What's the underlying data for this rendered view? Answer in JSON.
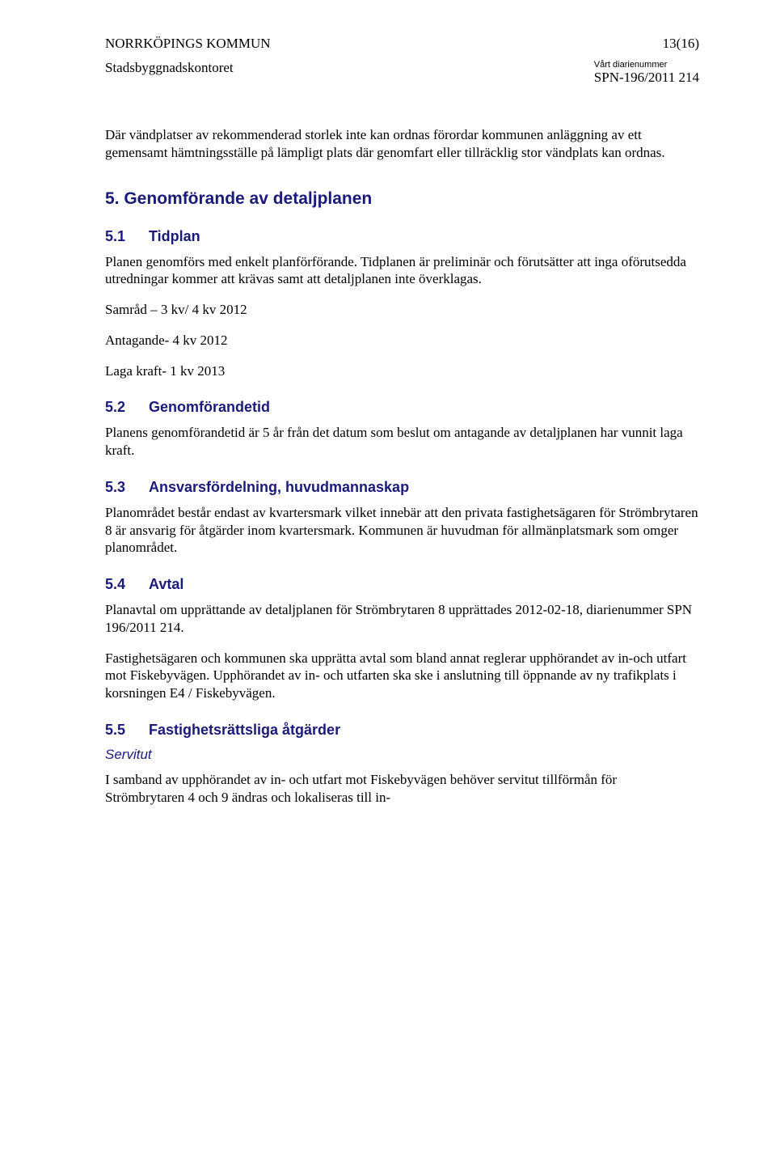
{
  "header": {
    "org": "NORRKÖPINGS KOMMUN",
    "page_num": "13(16)",
    "department": "Stadsbyggnadskontoret",
    "diarie_label": "Vårt diarienummer",
    "diarie_num": "SPN-196/2011 214"
  },
  "intro_para": "Där vändplatser av rekommenderad storlek inte kan ordnas förordar kommunen anläggning av ett gemensamt hämtningsställe på lämpligt plats där genomfart eller tillräcklig stor vändplats kan ordnas.",
  "s5": {
    "title": "5.  Genomförande av detaljplanen",
    "s5_1": {
      "num": "5.1",
      "title": "Tidplan",
      "p1": "Planen genomförs med enkelt planförförande. Tidplanen är preliminär och förutsätter att inga oförutsedda utredningar kommer att krävas samt att detaljplanen inte överklagas.",
      "p2": "Samråd – 3 kv/ 4 kv 2012",
      "p3": "Antagande- 4 kv 2012",
      "p4": "Laga kraft- 1 kv 2013"
    },
    "s5_2": {
      "num": "5.2",
      "title": "Genomförandetid",
      "p1": "Planens genomförandetid är 5 år från det datum som beslut om antagande av detaljplanen har vunnit laga kraft."
    },
    "s5_3": {
      "num": "5.3",
      "title": "Ansvarsfördelning, huvudmannaskap",
      "p1": "Planområdet består endast av kvartersmark vilket innebär att den privata fastighetsägaren för Strömbrytaren 8 är ansvarig för åtgärder inom kvartersmark. Kommunen är huvudman för allmänplatsmark som omger planområdet."
    },
    "s5_4": {
      "num": "5.4",
      "title": "Avtal",
      "p1": "Planavtal om upprättande av detaljplanen för Strömbrytaren 8 upprättades 2012-02-18, diarienummer SPN 196/2011 214.",
      "p2": "Fastighetsägaren och kommunen ska upprätta avtal som bland annat reglerar upphörandet av in-och utfart mot Fiskebyvägen. Upphörandet av in- och utfarten ska ske i anslutning till öppnande av ny trafikplats i korsningen E4 / Fiskebyvägen."
    },
    "s5_5": {
      "num": "5.5",
      "title": "Fastighetsrättsliga åtgärder",
      "sub_italic": "Servitut",
      "p1": "I samband av upphörandet av in- och utfart mot Fiskebyvägen behöver servitut tillförmån för Strömbrytaren 4 och 9 ändras och lokaliseras till in-"
    }
  }
}
